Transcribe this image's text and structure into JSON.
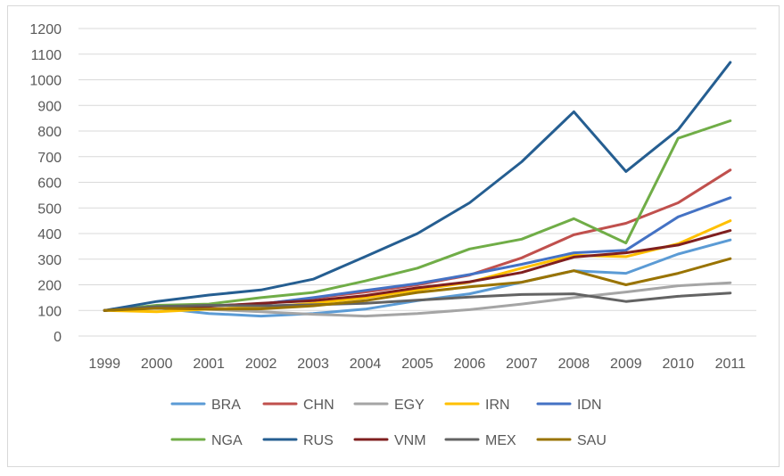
{
  "chart_data": {
    "type": "line",
    "title": "",
    "xlabel": "",
    "ylabel": "",
    "categories": [
      "1999",
      "2000",
      "2001",
      "2002",
      "2003",
      "2004",
      "2005",
      "2006",
      "2007",
      "2008",
      "2009",
      "2010",
      "2011"
    ],
    "ylim": [
      0,
      1200
    ],
    "yticks": [
      "0",
      "100",
      "200",
      "300",
      "400",
      "500",
      "600",
      "700",
      "800",
      "900",
      "1000",
      "1100",
      "1200"
    ],
    "grid": true,
    "legend_position": "bottom",
    "series": [
      {
        "name": "BRA",
        "color": "#5b9bd5",
        "values": [
          100,
          110,
          88,
          78,
          88,
          105,
          138,
          165,
          210,
          255,
          245,
          320,
          375
        ]
      },
      {
        "name": "CHN",
        "color": "#c0504d",
        "values": [
          100,
          112,
          118,
          125,
          148,
          172,
          200,
          238,
          305,
          395,
          440,
          520,
          648
        ]
      },
      {
        "name": "EGY",
        "color": "#a5a5a5",
        "values": [
          100,
          110,
          104,
          95,
          85,
          78,
          88,
          103,
          125,
          150,
          172,
          196,
          208
        ]
      },
      {
        "name": "IRN",
        "color": "#ffc000",
        "values": [
          100,
          95,
          105,
          112,
          128,
          150,
          180,
          210,
          265,
          315,
          310,
          360,
          450
        ]
      },
      {
        "name": "IDN",
        "color": "#4472c4",
        "values": [
          100,
          115,
          118,
          125,
          150,
          178,
          205,
          240,
          280,
          325,
          335,
          465,
          540
        ]
      },
      {
        "name": "NGA",
        "color": "#70ad47",
        "values": [
          100,
          120,
          125,
          150,
          170,
          215,
          265,
          340,
          378,
          458,
          363,
          772,
          840
        ]
      },
      {
        "name": "RUS",
        "color": "#255e91",
        "values": [
          100,
          135,
          160,
          180,
          222,
          310,
          400,
          520,
          680,
          875,
          642,
          805,
          1068
        ]
      },
      {
        "name": "VNM",
        "color": "#7f1f1f",
        "values": [
          100,
          112,
          116,
          128,
          138,
          158,
          188,
          212,
          248,
          308,
          325,
          355,
          412
        ]
      },
      {
        "name": "MEX",
        "color": "#636363",
        "values": [
          100,
          115,
          120,
          118,
          122,
          128,
          140,
          152,
          162,
          165,
          135,
          155,
          168
        ]
      },
      {
        "name": "SAU",
        "color": "#997300",
        "values": [
          100,
          108,
          105,
          106,
          118,
          138,
          170,
          192,
          210,
          255,
          200,
          245,
          302
        ]
      }
    ]
  }
}
